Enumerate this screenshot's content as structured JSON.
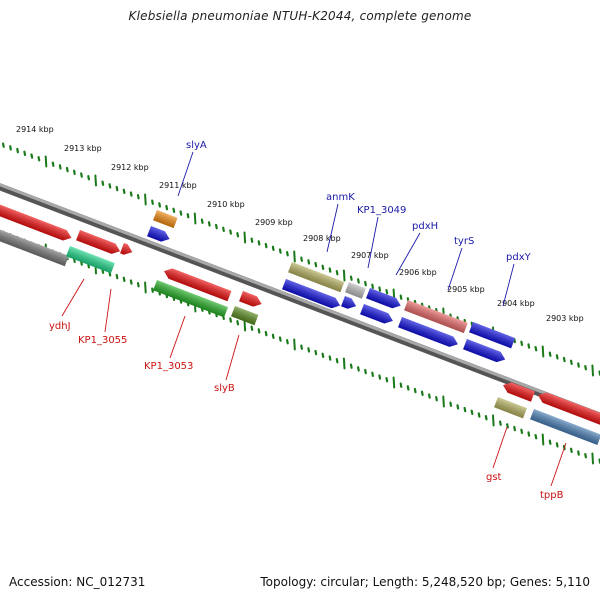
{
  "title": "Klebsiella pneumoniae NTUH-K2044, complete genome",
  "footer": {
    "accession": "Accession: NC_012731",
    "topology": "Topology: circular; Length: 5,248,520 bp; Genes: 5,110"
  },
  "colors": {
    "backbone": "#8a8a8a",
    "tick": "#1a7a1a",
    "upper_label": "#1a1aa8",
    "lower_label": "#cc1111"
  },
  "scale": {
    "labels": [
      "2914 kbp",
      "2913 kbp",
      "2912 kbp",
      "2911 kbp",
      "2910 kbp",
      "2909 kbp",
      "2908 kbp",
      "2907 kbp",
      "2906 kbp",
      "2905 kbp",
      "2904 kbp",
      "2903 kbp"
    ]
  },
  "genes": {
    "upper_labels": [
      "slyA",
      "anmK",
      "KP1_3049",
      "pdxH",
      "tyrS",
      "pdxY"
    ],
    "lower_labels": [
      "ydhJ",
      "KP1_3055",
      "KP1_3053",
      "slyB",
      "gst",
      "tppB"
    ]
  }
}
